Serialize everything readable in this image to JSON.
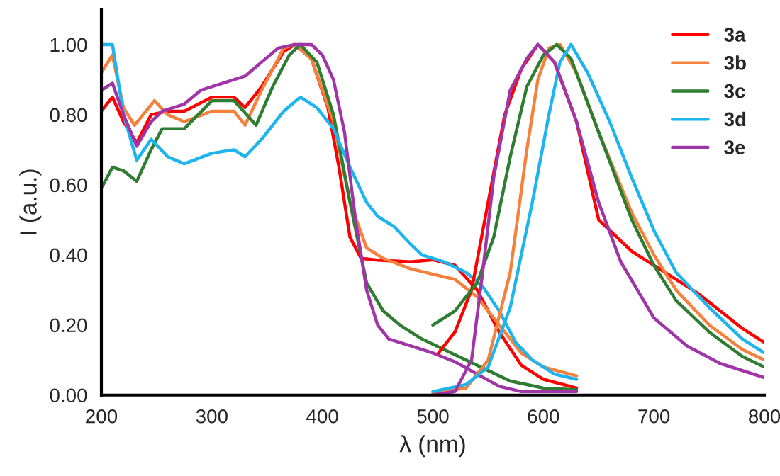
{
  "chart_data": {
    "type": "line",
    "xlabel": "λ (nm)",
    "ylabel": "I (a.u.)",
    "xlim": [
      200,
      800
    ],
    "ylim": [
      0,
      1.1
    ],
    "xticks": [
      200,
      300,
      400,
      500,
      600,
      700,
      800
    ],
    "yticks": [
      {
        "value": 0,
        "label": "0.00"
      },
      {
        "value": 0.2,
        "label": "0.20"
      },
      {
        "value": 0.4,
        "label": "0.40"
      },
      {
        "value": 0.6,
        "label": "0.60"
      },
      {
        "value": 0.8,
        "label": "0.80"
      },
      {
        "value": 1.0,
        "label": "1.00"
      }
    ],
    "grid": false,
    "legend": "top right",
    "series": [
      {
        "name": "3a",
        "color": "#ff0000",
        "x": [
          200,
          210,
          220,
          232,
          245,
          260,
          275,
          300,
          320,
          330,
          345,
          365,
          375,
          390,
          405,
          415,
          425,
          435,
          450,
          480,
          500,
          520,
          540,
          560,
          580,
          600,
          630
        ],
        "values": [
          0.81,
          0.85,
          0.78,
          0.72,
          0.8,
          0.81,
          0.81,
          0.85,
          0.85,
          0.82,
          0.88,
          0.98,
          1.0,
          0.96,
          0.82,
          0.65,
          0.45,
          0.39,
          0.385,
          0.38,
          0.386,
          0.37,
          0.3,
          0.18,
          0.085,
          0.045,
          0.02
        ]
      },
      {
        "name": "3b",
        "color": "#f4813c",
        "x": [
          200,
          210,
          220,
          230,
          248,
          260,
          275,
          300,
          320,
          330,
          345,
          365,
          375,
          390,
          410,
          425,
          440,
          455,
          480,
          500,
          520,
          540,
          560,
          580,
          600,
          630
        ],
        "values": [
          0.92,
          0.97,
          0.82,
          0.77,
          0.84,
          0.8,
          0.78,
          0.81,
          0.81,
          0.77,
          0.87,
          0.99,
          1.0,
          0.96,
          0.78,
          0.55,
          0.42,
          0.39,
          0.36,
          0.345,
          0.33,
          0.28,
          0.2,
          0.12,
          0.08,
          0.055
        ]
      },
      {
        "name": "3c",
        "color": "#2e7d32",
        "x": [
          200,
          210,
          220,
          232,
          245,
          255,
          275,
          300,
          320,
          340,
          355,
          370,
          380,
          395,
          410,
          425,
          440,
          455,
          470,
          490,
          510,
          530,
          550,
          570,
          600,
          630
        ],
        "values": [
          0.59,
          0.65,
          0.64,
          0.61,
          0.7,
          0.76,
          0.76,
          0.84,
          0.84,
          0.77,
          0.88,
          0.97,
          1.0,
          0.95,
          0.8,
          0.55,
          0.32,
          0.24,
          0.2,
          0.16,
          0.13,
          0.1,
          0.07,
          0.04,
          0.02,
          0.015
        ]
      },
      {
        "name": "3d",
        "color": "#1eb4ee",
        "x": [
          200,
          210,
          220,
          232,
          245,
          260,
          275,
          300,
          320,
          330,
          345,
          365,
          380,
          395,
          410,
          425,
          440,
          450,
          465,
          480,
          490,
          510,
          530,
          545,
          560,
          575,
          590,
          610,
          630
        ],
        "values": [
          1.0,
          1.0,
          0.8,
          0.67,
          0.73,
          0.68,
          0.66,
          0.69,
          0.7,
          0.68,
          0.73,
          0.81,
          0.85,
          0.82,
          0.76,
          0.65,
          0.55,
          0.51,
          0.48,
          0.43,
          0.4,
          0.38,
          0.35,
          0.31,
          0.24,
          0.15,
          0.1,
          0.06,
          0.045
        ]
      },
      {
        "name": "3e",
        "color": "#a035a8",
        "x": [
          200,
          210,
          220,
          232,
          245,
          255,
          275,
          290,
          310,
          330,
          345,
          360,
          375,
          390,
          400,
          410,
          420,
          430,
          440,
          450,
          460,
          480,
          500,
          520,
          540,
          560,
          580,
          630
        ],
        "values": [
          0.87,
          0.89,
          0.8,
          0.71,
          0.78,
          0.81,
          0.83,
          0.87,
          0.89,
          0.91,
          0.95,
          0.99,
          1.0,
          1.0,
          0.97,
          0.9,
          0.75,
          0.5,
          0.3,
          0.2,
          0.16,
          0.14,
          0.12,
          0.095,
          0.06,
          0.025,
          0.01,
          0.01
        ]
      },
      {
        "color": "#ff0000",
        "x": [
          505,
          520,
          535,
          550,
          565,
          580,
          595,
          610,
          630,
          650,
          660,
          680,
          700,
          720,
          740,
          760,
          780,
          800
        ],
        "values": [
          0.12,
          0.18,
          0.3,
          0.55,
          0.8,
          0.93,
          1.0,
          0.95,
          0.78,
          0.5,
          0.47,
          0.41,
          0.37,
          0.33,
          0.29,
          0.24,
          0.19,
          0.15
        ]
      },
      {
        "color": "#f4813c",
        "x": [
          500,
          530,
          550,
          570,
          585,
          595,
          605,
          615,
          630,
          650,
          680,
          700,
          720,
          750,
          780,
          800
        ],
        "values": [
          0.005,
          0.02,
          0.1,
          0.35,
          0.7,
          0.9,
          0.99,
          1.0,
          0.92,
          0.75,
          0.52,
          0.4,
          0.3,
          0.2,
          0.13,
          0.1
        ]
      },
      {
        "color": "#2e7d32",
        "x": [
          500,
          520,
          540,
          555,
          570,
          585,
          600,
          612,
          625,
          650,
          680,
          700,
          720,
          750,
          780,
          800
        ],
        "values": [
          0.2,
          0.24,
          0.32,
          0.45,
          0.68,
          0.88,
          0.97,
          1.0,
          0.96,
          0.75,
          0.5,
          0.37,
          0.27,
          0.18,
          0.11,
          0.08
        ]
      },
      {
        "color": "#1eb4ee",
        "x": [
          500,
          530,
          550,
          570,
          590,
          605,
          615,
          625,
          640,
          660,
          680,
          700,
          720,
          750,
          780,
          800
        ],
        "values": [
          0.01,
          0.03,
          0.08,
          0.25,
          0.55,
          0.8,
          0.95,
          1.0,
          0.92,
          0.78,
          0.62,
          0.47,
          0.35,
          0.25,
          0.16,
          0.12
        ]
      },
      {
        "color": "#a035a8",
        "x": [
          500,
          520,
          535,
          545,
          555,
          570,
          585,
          595,
          610,
          630,
          650,
          670,
          700,
          730,
          760,
          800
        ],
        "values": [
          0.0,
          0.01,
          0.1,
          0.35,
          0.62,
          0.87,
          0.96,
          1.0,
          0.95,
          0.78,
          0.55,
          0.38,
          0.22,
          0.14,
          0.09,
          0.05
        ]
      }
    ]
  }
}
